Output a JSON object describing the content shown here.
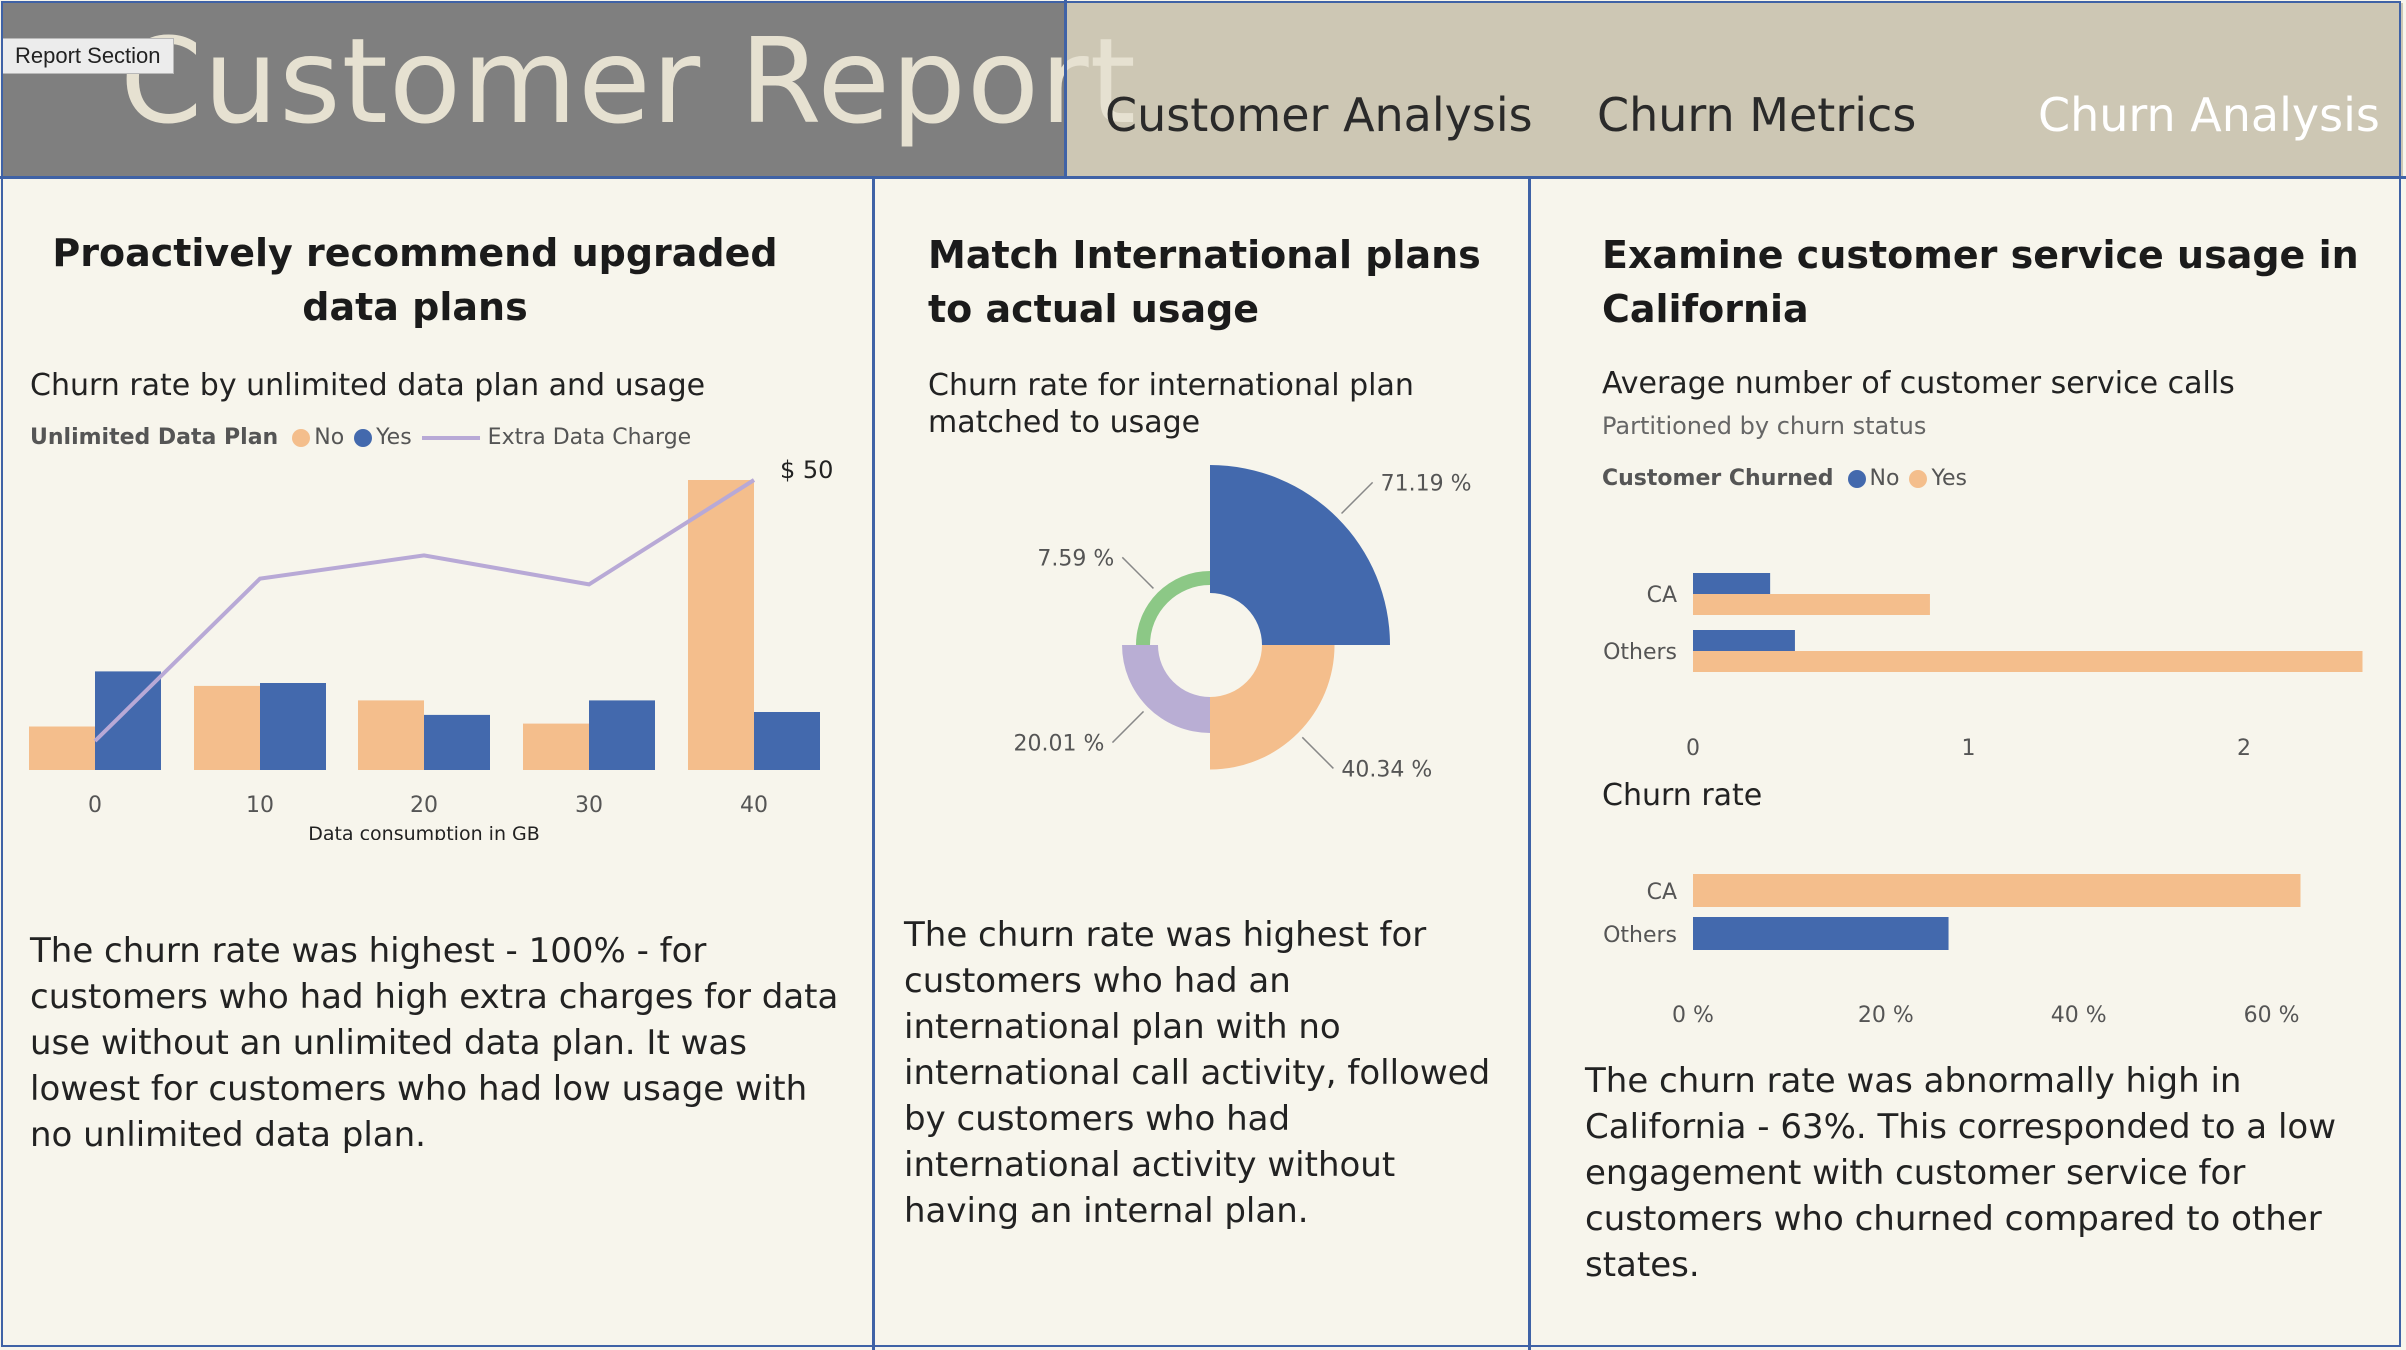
{
  "header": {
    "title": "Customer Report",
    "section_tag": "Report Section",
    "nav": [
      {
        "label": "Customer Analysis",
        "active": false
      },
      {
        "label": "Churn Metrics",
        "active": false
      },
      {
        "label": "Churn Analysis",
        "active": true
      }
    ]
  },
  "colors": {
    "no": "#f4be8c",
    "yes": "#4369ad",
    "line": "#b8a9d6",
    "green": "#8cc886",
    "purple": "#b9aed4",
    "border": "#3f62a6"
  },
  "panel1": {
    "heading": "Proactively recommend upgraded data plans",
    "chart_title": "Churn rate by unlimited data plan and usage",
    "legend": {
      "title": "Unlimited Data Plan",
      "no": "No",
      "yes": "Yes",
      "line": "Extra Data Charge"
    },
    "body": "The churn rate was highest - 100% - for customers who had high extra charges for data use without an unlimited data plan. It was lowest for customers who had low usage with no unlimited data plan."
  },
  "panel2": {
    "heading": "Match International plans to actual usage",
    "chart_title_line1": "Churn rate for international plan",
    "chart_title_line2": "matched to usage",
    "body": "The churn rate was highest for customers who had an international plan with no international call activity, followed by customers who had international activity without having an internal plan."
  },
  "panel3": {
    "heading": "Examine customer service usage in California",
    "chart1_title": "Average number of customer service calls",
    "chart1_subtitle": "Partitioned by churn status",
    "legend": {
      "title": "Customer Churned",
      "no": "No",
      "yes": "Yes"
    },
    "chart2_title": "Churn rate",
    "body": "The churn rate was abnormally high in California - 63%. This corresponded to a low engagement with customer service for customers who churned compared to other states."
  },
  "chart_data": [
    {
      "id": "data-plan-usage",
      "type": "bar",
      "categories": [
        "0",
        "10",
        "20",
        "30",
        "40"
      ],
      "xlabel": "Data consumption in GB",
      "series": [
        {
          "name": "No",
          "values": [
            0.15,
            0.29,
            0.24,
            0.16,
            1.0
          ]
        },
        {
          "name": "Yes",
          "values": [
            0.34,
            0.3,
            0.19,
            0.24,
            0.2
          ]
        }
      ],
      "line_series": {
        "name": "Extra Data Charge",
        "values": [
          5,
          33,
          37,
          32,
          50
        ]
      },
      "line_label": "$ 50",
      "ylim": [
        0,
        1
      ]
    },
    {
      "id": "international-plan",
      "type": "pie",
      "slices": [
        {
          "label": "71.19 %",
          "value": 71.19
        },
        {
          "label": "40.34 %",
          "value": 40.34
        },
        {
          "label": "20.01 %",
          "value": 20.01
        },
        {
          "label": "7.59 %",
          "value": 7.59
        }
      ]
    },
    {
      "id": "service-calls",
      "type": "bar",
      "orientation": "horizontal",
      "categories": [
        "CA",
        "Others"
      ],
      "series": [
        {
          "name": "No",
          "values": [
            0.28,
            0.37
          ]
        },
        {
          "name": "Yes",
          "values": [
            0.86,
            2.43
          ]
        }
      ],
      "xticks": [
        "0",
        "1",
        "2"
      ],
      "xlim": [
        0,
        2.45
      ]
    },
    {
      "id": "churn-rate-state",
      "type": "bar",
      "orientation": "horizontal",
      "categories": [
        "CA",
        "Others"
      ],
      "values": [
        63,
        26.5
      ],
      "xticks": [
        "0 %",
        "20 %",
        "40 %",
        "60 %"
      ],
      "xlim": [
        0,
        70
      ]
    }
  ]
}
